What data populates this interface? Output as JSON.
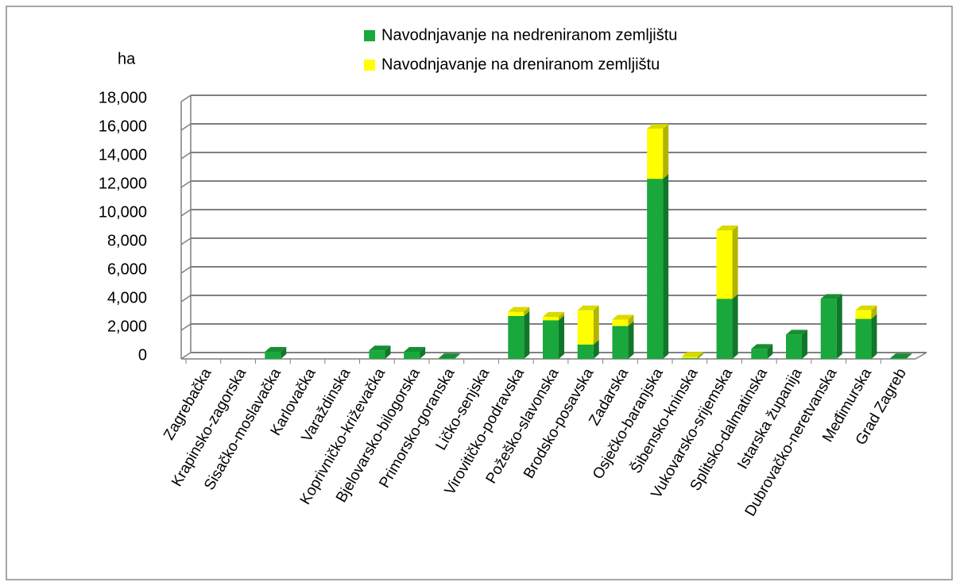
{
  "chart_data": {
    "type": "bar3d_stacked",
    "y_axis_label": "ha",
    "categories": [
      "Zagrebačka",
      "Krapinsko-zagorska",
      "Sisačko-moslavačka",
      "Karlovačka",
      "Varaždinska",
      "Koprivničko-križevačka",
      "Bjelovarsko-bilogorska",
      "Primorsko-goranska",
      "Ličko-senjska",
      "Virovitičko-podravska",
      "Požeško-slavonska",
      "Brodsko-posavska",
      "Zadarska",
      "Osječko-baranjska",
      "Šibensko-kninska",
      "Vukovarsko-srijemska",
      "Splitsko-dalmatinska",
      "Istarska županija",
      "Dubrovačko-neretvanska",
      "Međimurska",
      "Grad Zagreb"
    ],
    "series": [
      {
        "name": "Navodnjavanje na nedreniranom zemljištu",
        "color": "#1aa83c",
        "values": [
          0,
          0,
          500,
          0,
          0,
          600,
          500,
          50,
          0,
          3000,
          2700,
          1000,
          2300,
          12600,
          50,
          4200,
          700,
          1700,
          4200,
          2800,
          50
        ]
      },
      {
        "name": "Navodnjavanje na dreniranom zemljištu",
        "color": "#ffff00",
        "values": [
          0,
          0,
          0,
          0,
          0,
          0,
          0,
          0,
          0,
          300,
          250,
          2400,
          450,
          3500,
          100,
          4800,
          0,
          0,
          0,
          600,
          0
        ]
      }
    ],
    "ylim": [
      0,
      18000
    ],
    "yticks": [
      0,
      {
        "value": 2000,
        "label": "2,000"
      },
      {
        "value": 4000,
        "label": "4,000"
      },
      {
        "value": 6000,
        "label": "6,000"
      },
      {
        "value": 8000,
        "label": "8,000"
      },
      {
        "value": 10000,
        "label": "10,000"
      },
      {
        "value": 12000,
        "label": "12,000"
      },
      {
        "value": 14000,
        "label": "14,000"
      },
      {
        "value": 16000,
        "label": "16,000"
      },
      {
        "value": 18000,
        "label": "18,000"
      }
    ],
    "grid": true
  }
}
